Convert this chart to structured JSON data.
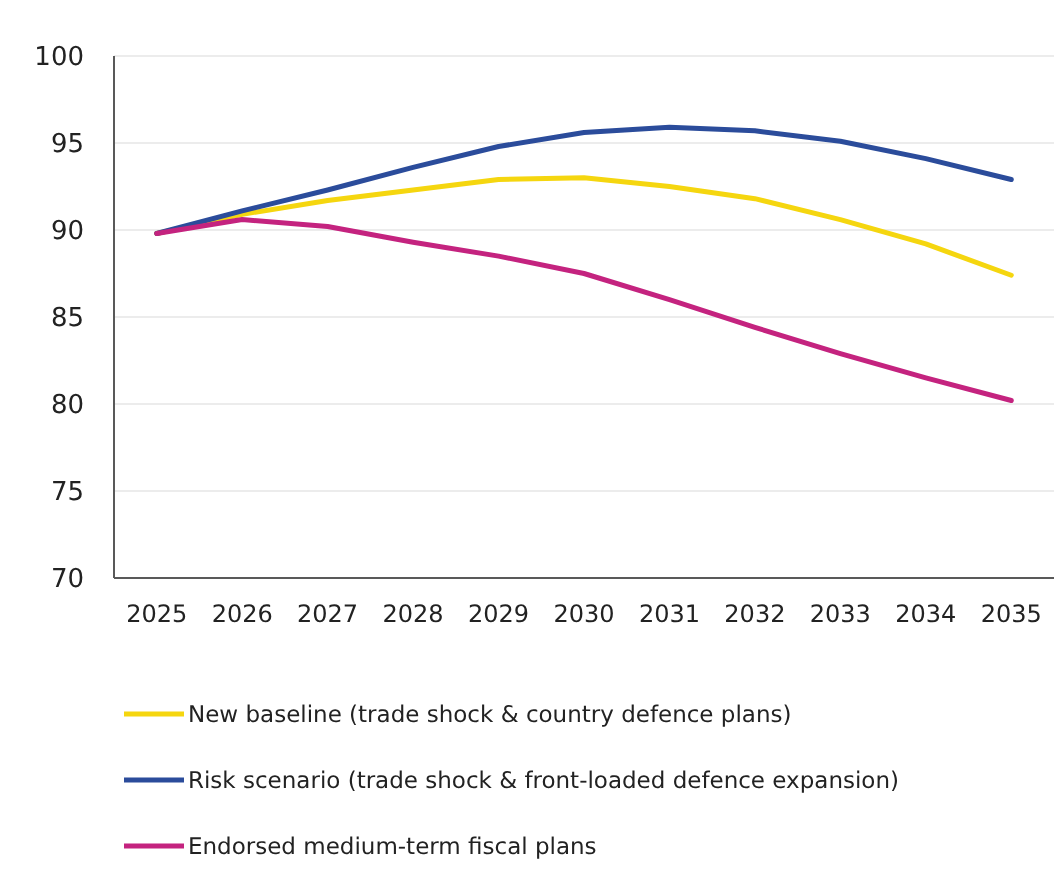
{
  "chart_data": {
    "type": "line",
    "categories": [
      "2025",
      "2026",
      "2027",
      "2028",
      "2029",
      "2030",
      "2031",
      "2032",
      "2033",
      "2034",
      "2035"
    ],
    "series": [
      {
        "name": "New baseline (trade shock & country defence plans)",
        "color": "#f5d60f",
        "values": [
          89.8,
          90.9,
          91.7,
          92.3,
          92.9,
          93.0,
          92.5,
          91.8,
          90.6,
          89.2,
          87.4
        ]
      },
      {
        "name": "Risk scenario (trade shock & front-loaded defence expansion)",
        "color": "#2b4c9b",
        "values": [
          89.8,
          91.1,
          92.3,
          93.6,
          94.8,
          95.6,
          95.9,
          95.7,
          95.1,
          94.1,
          92.9
        ]
      },
      {
        "name": "Endorsed medium-term fiscal plans",
        "color": "#c4237f",
        "values": [
          89.8,
          90.6,
          90.2,
          89.3,
          88.5,
          87.5,
          86.0,
          84.4,
          82.9,
          81.5,
          80.2
        ]
      }
    ],
    "ylim": [
      70,
      100
    ],
    "yticks": [
      70,
      75,
      80,
      85,
      90,
      95,
      100
    ],
    "grid": "y",
    "legend": "bottom",
    "marker": "none",
    "line_style": "solid"
  }
}
